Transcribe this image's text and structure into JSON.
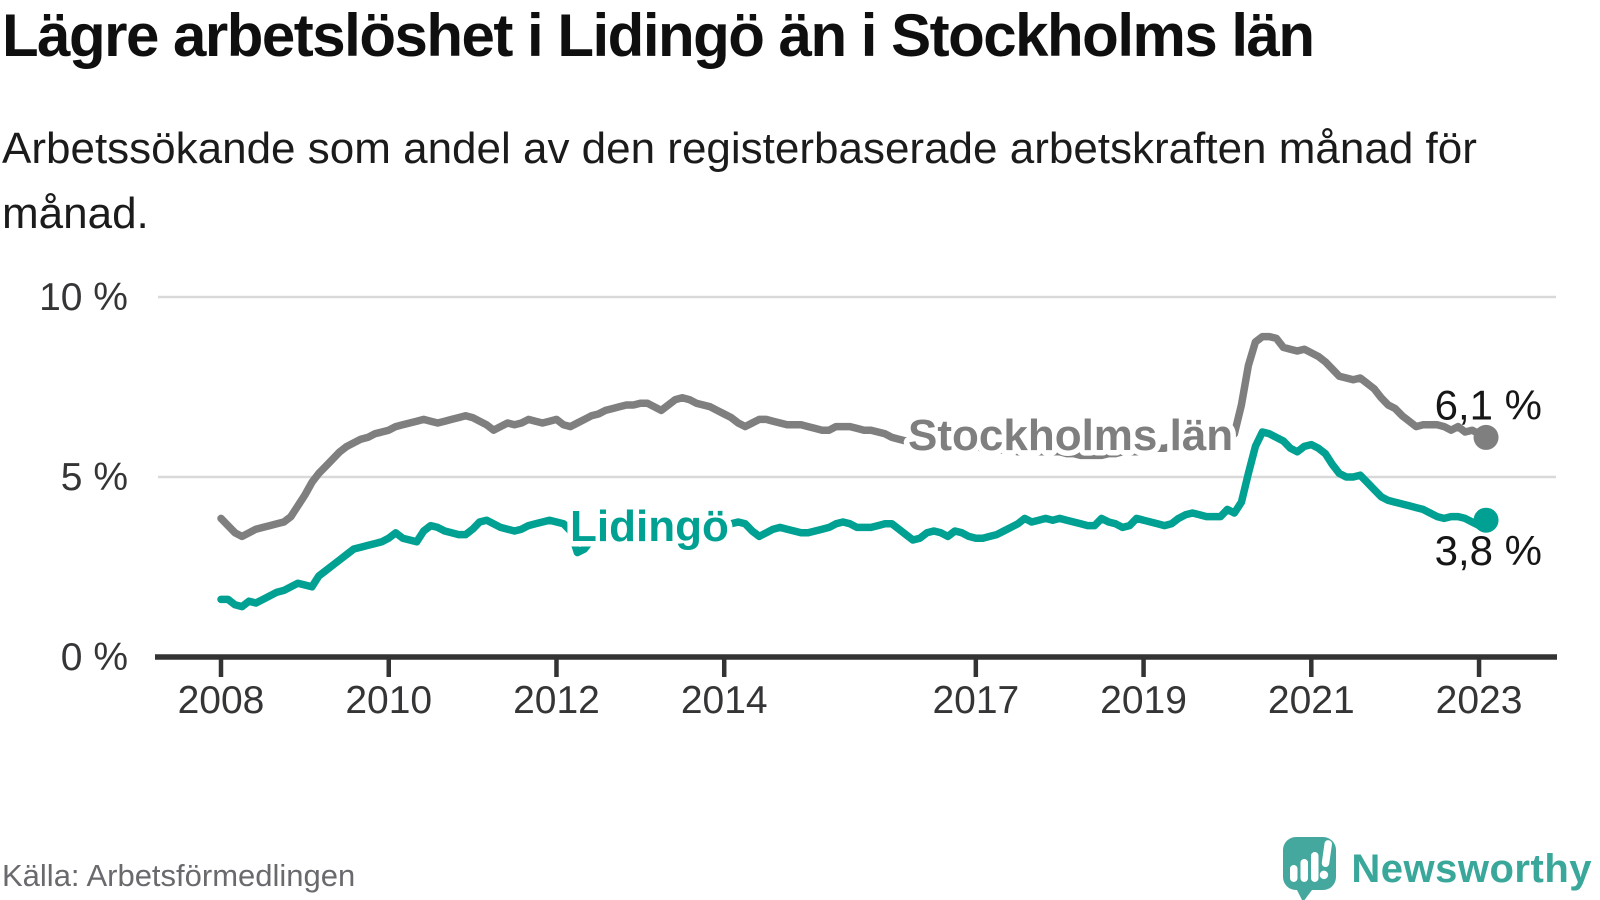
{
  "header": {
    "title": "Lägre arbetslöshet i Lidingö än i Stockholms län",
    "subtitle": "Arbetssökande som andel av den registerbaserade arbetskraften månad för månad."
  },
  "footer": {
    "source": "Källa: Arbetsförmedlingen",
    "brand": "Newsworthy"
  },
  "colors": {
    "lidingo": "#00a192",
    "stockholm": "#7f7f7f",
    "axis": "#333333",
    "grid": "#d9d9d9",
    "value_text": "#161616",
    "logo_teal": "#45a89e",
    "brand_text": "#3aa79b"
  },
  "chart_data": {
    "type": "line",
    "title": "Lägre arbetslöshet i Lidingö än i Stockholms län",
    "xlabel": "",
    "ylabel": "Arbetssökande som andel av den registerbaserade arbetskraften",
    "unit": "%",
    "frequency": "monthly",
    "x_start": "2008-01",
    "x_end": "2023-02",
    "xlim": [
      2007.2,
      2023.9
    ],
    "ylim": [
      0,
      10.9
    ],
    "grid": "horizontal",
    "x_ticks": [
      2008,
      2010,
      2012,
      2014,
      2017,
      2019,
      2021,
      2023
    ],
    "y_ticks": [
      {
        "value": 10,
        "label": "10 %"
      },
      {
        "value": 5,
        "label": "5 %"
      },
      {
        "value": 0,
        "label": "0 %"
      }
    ],
    "series": [
      {
        "name": "Stockholms län",
        "color": "#7f7f7f",
        "end_value": 6.1,
        "end_value_label": "6,1 %",
        "values": [
          3.85,
          3.65,
          3.45,
          3.35,
          3.45,
          3.55,
          3.6,
          3.65,
          3.7,
          3.75,
          3.9,
          4.2,
          4.5,
          4.85,
          5.1,
          5.3,
          5.5,
          5.7,
          5.85,
          5.95,
          6.05,
          6.1,
          6.2,
          6.25,
          6.3,
          6.4,
          6.45,
          6.5,
          6.55,
          6.6,
          6.55,
          6.5,
          6.55,
          6.6,
          6.65,
          6.7,
          6.65,
          6.55,
          6.45,
          6.3,
          6.4,
          6.5,
          6.45,
          6.5,
          6.6,
          6.55,
          6.5,
          6.55,
          6.6,
          6.45,
          6.4,
          6.5,
          6.6,
          6.7,
          6.75,
          6.85,
          6.9,
          6.95,
          7.0,
          7.0,
          7.05,
          7.05,
          6.95,
          6.85,
          7.0,
          7.15,
          7.2,
          7.15,
          7.05,
          7.0,
          6.95,
          6.85,
          6.75,
          6.65,
          6.5,
          6.4,
          6.5,
          6.6,
          6.6,
          6.55,
          6.5,
          6.45,
          6.45,
          6.45,
          6.4,
          6.35,
          6.3,
          6.3,
          6.4,
          6.4,
          6.4,
          6.35,
          6.3,
          6.3,
          6.25,
          6.2,
          6.1,
          6.05,
          6.0,
          6.0,
          5.95,
          5.95,
          5.9,
          5.9,
          5.9,
          5.85,
          5.85,
          5.85,
          5.85,
          5.8,
          5.8,
          5.75,
          5.75,
          5.75,
          5.7,
          5.7,
          5.7,
          5.7,
          5.7,
          5.7,
          5.7,
          5.65,
          5.65,
          5.6,
          5.6,
          5.6,
          5.6,
          5.65,
          5.65,
          5.7,
          5.7,
          5.7,
          5.75,
          5.75,
          5.8,
          5.8,
          5.85,
          5.9,
          5.9,
          5.95,
          6.0,
          6.0,
          6.0,
          6.0,
          6.15,
          6.2,
          7.0,
          8.1,
          8.75,
          8.9,
          8.9,
          8.85,
          8.6,
          8.55,
          8.5,
          8.55,
          8.45,
          8.35,
          8.2,
          8.0,
          7.8,
          7.75,
          7.7,
          7.75,
          7.6,
          7.45,
          7.2,
          7.0,
          6.9,
          6.7,
          6.55,
          6.4,
          6.45,
          6.45,
          6.45,
          6.4,
          6.3,
          6.4,
          6.25,
          6.3,
          6.2,
          6.1
        ]
      },
      {
        "name": "Lidingö",
        "color": "#00a192",
        "end_value": 3.8,
        "end_value_label": "3,8 %",
        "values": [
          1.6,
          1.6,
          1.45,
          1.4,
          1.55,
          1.5,
          1.6,
          1.7,
          1.8,
          1.85,
          1.95,
          2.05,
          2.0,
          1.95,
          2.25,
          2.4,
          2.55,
          2.7,
          2.85,
          3.0,
          3.05,
          3.1,
          3.15,
          3.2,
          3.3,
          3.45,
          3.3,
          3.25,
          3.2,
          3.5,
          3.65,
          3.6,
          3.5,
          3.45,
          3.4,
          3.4,
          3.55,
          3.75,
          3.8,
          3.7,
          3.6,
          3.55,
          3.5,
          3.55,
          3.65,
          3.7,
          3.75,
          3.8,
          3.75,
          3.7,
          3.5,
          2.9,
          3.0,
          3.25,
          3.4,
          3.45,
          3.5,
          3.5,
          3.5,
          3.55,
          3.55,
          3.6,
          3.6,
          3.55,
          3.6,
          3.6,
          3.65,
          3.6,
          3.6,
          3.6,
          3.65,
          3.65,
          3.65,
          3.7,
          3.75,
          3.7,
          3.5,
          3.35,
          3.45,
          3.55,
          3.6,
          3.55,
          3.5,
          3.45,
          3.45,
          3.5,
          3.55,
          3.6,
          3.7,
          3.75,
          3.7,
          3.6,
          3.6,
          3.6,
          3.65,
          3.7,
          3.7,
          3.55,
          3.4,
          3.25,
          3.3,
          3.45,
          3.5,
          3.45,
          3.35,
          3.5,
          3.45,
          3.35,
          3.3,
          3.3,
          3.35,
          3.4,
          3.5,
          3.6,
          3.7,
          3.85,
          3.75,
          3.8,
          3.85,
          3.8,
          3.85,
          3.8,
          3.75,
          3.7,
          3.65,
          3.65,
          3.85,
          3.75,
          3.7,
          3.6,
          3.65,
          3.85,
          3.8,
          3.75,
          3.7,
          3.65,
          3.7,
          3.85,
          3.95,
          4.0,
          3.95,
          3.9,
          3.9,
          3.9,
          4.1,
          4.0,
          4.3,
          5.1,
          5.85,
          6.25,
          6.2,
          6.1,
          6.0,
          5.8,
          5.7,
          5.85,
          5.9,
          5.8,
          5.65,
          5.35,
          5.1,
          5.0,
          5.0,
          5.05,
          4.85,
          4.65,
          4.45,
          4.35,
          4.3,
          4.25,
          4.2,
          4.15,
          4.1,
          4.0,
          3.9,
          3.85,
          3.9,
          3.9,
          3.85,
          3.75,
          3.65,
          3.8
        ]
      }
    ],
    "legend_position": "inline-labels"
  }
}
